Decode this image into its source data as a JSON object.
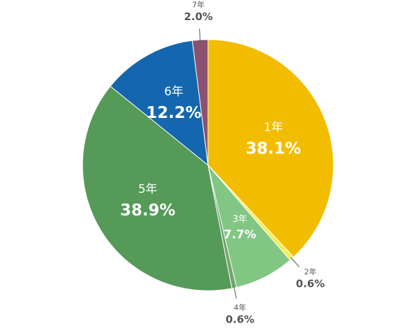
{
  "chart_data": {
    "type": "pie",
    "categories": [
      "1年",
      "2年",
      "3年",
      "4年",
      "5年",
      "6年",
      "7年"
    ],
    "values": [
      38.1,
      0.6,
      7.7,
      0.6,
      38.9,
      12.2,
      2.0
    ],
    "value_labels": [
      "38.1%",
      "0.6%",
      "7.7%",
      "0.6%",
      "38.9%",
      "12.2%",
      "2.0%"
    ],
    "colors": [
      "#f2bd00",
      "#f3ee55",
      "#82c684",
      "#6ea56f",
      "#559a58",
      "#1467ae",
      "#8a5170"
    ]
  }
}
